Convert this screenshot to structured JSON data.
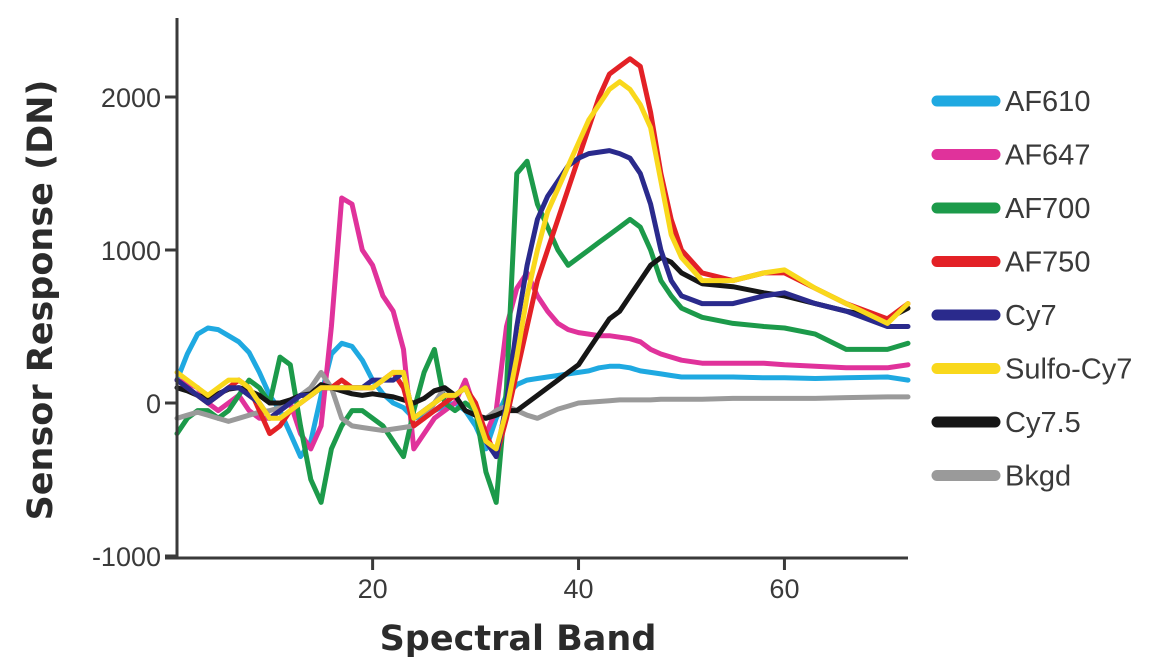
{
  "chart_data": {
    "type": "line",
    "xlabel": "Spectral Band",
    "ylabel": "Sensor Response (DN)",
    "xlim": [
      1,
      72
    ],
    "ylim": [
      -1000,
      2400
    ],
    "xticks": [
      20,
      40,
      60
    ],
    "yticks": [
      -1000,
      0,
      1000,
      2000
    ],
    "ytick_labels": [
      "-1000",
      "0",
      "1000",
      "2000"
    ],
    "xtick_labels": [
      "20",
      "40",
      "60"
    ],
    "legend_position": "right",
    "series": [
      {
        "name": "AF610",
        "color": "#1fa9e1",
        "x": [
          1,
          2,
          3,
          4,
          5,
          6,
          7,
          8,
          9,
          10,
          11,
          12,
          13,
          14,
          15,
          16,
          17,
          18,
          19,
          20,
          21,
          22,
          23,
          24,
          25,
          26,
          27,
          28,
          29,
          30,
          31,
          32,
          33,
          34,
          35,
          36,
          37,
          38,
          39,
          40,
          41,
          42,
          43,
          44,
          45,
          46,
          47,
          48,
          49,
          50,
          52,
          55,
          58,
          60,
          63,
          66,
          70,
          72
        ],
        "y": [
          150,
          320,
          450,
          490,
          480,
          440,
          400,
          330,
          200,
          50,
          -50,
          -200,
          -350,
          -250,
          50,
          320,
          390,
          370,
          280,
          150,
          60,
          0,
          -30,
          -100,
          -80,
          -50,
          -20,
          0,
          -50,
          -150,
          -300,
          -100,
          50,
          120,
          150,
          160,
          170,
          180,
          190,
          200,
          210,
          230,
          240,
          240,
          230,
          210,
          200,
          190,
          180,
          170,
          170,
          170,
          165,
          165,
          160,
          165,
          170,
          150
        ]
      },
      {
        "name": "AF647",
        "color": "#e0329b",
        "x": [
          1,
          2,
          3,
          4,
          5,
          6,
          7,
          8,
          9,
          10,
          11,
          12,
          13,
          14,
          15,
          16,
          17,
          18,
          19,
          20,
          21,
          22,
          23,
          24,
          25,
          26,
          27,
          28,
          29,
          30,
          31,
          32,
          33,
          34,
          35,
          36,
          37,
          38,
          39,
          40,
          41,
          42,
          43,
          44,
          45,
          46,
          47,
          48,
          49,
          50,
          52,
          55,
          58,
          60,
          63,
          66,
          70,
          72
        ],
        "y": [
          150,
          130,
          100,
          0,
          -50,
          0,
          50,
          -50,
          -100,
          -100,
          -50,
          0,
          -200,
          -300,
          -150,
          500,
          1340,
          1300,
          1000,
          900,
          700,
          600,
          350,
          -300,
          -200,
          -100,
          -50,
          0,
          150,
          -50,
          -200,
          -50,
          500,
          750,
          850,
          700,
          600,
          520,
          480,
          460,
          450,
          440,
          440,
          430,
          420,
          400,
          350,
          320,
          300,
          280,
          260,
          260,
          260,
          250,
          240,
          230,
          230,
          250
        ]
      },
      {
        "name": "AF700",
        "color": "#1c9a4a",
        "x": [
          1,
          2,
          3,
          4,
          5,
          6,
          7,
          8,
          9,
          10,
          11,
          12,
          13,
          14,
          15,
          16,
          17,
          18,
          19,
          20,
          21,
          22,
          23,
          24,
          25,
          26,
          27,
          28,
          29,
          30,
          31,
          32,
          33,
          34,
          35,
          36,
          37,
          38,
          39,
          40,
          41,
          42,
          43,
          44,
          45,
          46,
          47,
          48,
          49,
          50,
          52,
          55,
          58,
          60,
          63,
          66,
          70,
          72
        ],
        "y": [
          -200,
          -100,
          -50,
          -50,
          -100,
          -50,
          50,
          150,
          100,
          0,
          300,
          250,
          -150,
          -500,
          -650,
          -300,
          -150,
          -50,
          -50,
          -100,
          -150,
          -250,
          -350,
          -50,
          200,
          350,
          0,
          -50,
          0,
          -50,
          -450,
          -650,
          100,
          1500,
          1580,
          1300,
          1150,
          1000,
          900,
          950,
          1000,
          1050,
          1100,
          1150,
          1200,
          1150,
          1000,
          800,
          700,
          620,
          560,
          520,
          500,
          490,
          450,
          350,
          350,
          390
        ]
      },
      {
        "name": "AF750",
        "color": "#e32126",
        "x": [
          1,
          2,
          3,
          4,
          5,
          6,
          7,
          8,
          9,
          10,
          11,
          12,
          13,
          14,
          15,
          16,
          17,
          18,
          19,
          20,
          21,
          22,
          23,
          24,
          25,
          26,
          27,
          28,
          29,
          30,
          31,
          32,
          33,
          34,
          35,
          36,
          37,
          38,
          39,
          40,
          41,
          42,
          43,
          44,
          45,
          46,
          47,
          48,
          49,
          50,
          52,
          55,
          58,
          60,
          63,
          66,
          70,
          72
        ],
        "y": [
          150,
          100,
          50,
          0,
          50,
          100,
          150,
          100,
          -50,
          -200,
          -150,
          -50,
          0,
          50,
          100,
          100,
          150,
          100,
          100,
          100,
          150,
          200,
          100,
          -150,
          -100,
          -50,
          0,
          50,
          100,
          0,
          -200,
          -350,
          -100,
          200,
          500,
          800,
          1000,
          1200,
          1400,
          1600,
          1800,
          2000,
          2150,
          2200,
          2250,
          2200,
          1900,
          1500,
          1200,
          1000,
          850,
          800,
          850,
          850,
          750,
          650,
          550,
          650
        ]
      },
      {
        "name": "Cy7",
        "color": "#2a2a8c",
        "x": [
          1,
          2,
          3,
          4,
          5,
          6,
          7,
          8,
          9,
          10,
          11,
          12,
          13,
          14,
          15,
          16,
          17,
          18,
          19,
          20,
          21,
          22,
          23,
          24,
          25,
          26,
          27,
          28,
          29,
          30,
          31,
          32,
          33,
          34,
          35,
          36,
          37,
          38,
          39,
          40,
          41,
          42,
          43,
          44,
          45,
          46,
          47,
          48,
          49,
          50,
          52,
          55,
          58,
          60,
          63,
          66,
          70,
          72
        ],
        "y": [
          150,
          100,
          50,
          0,
          50,
          100,
          100,
          50,
          0,
          -100,
          -50,
          0,
          50,
          50,
          100,
          100,
          100,
          100,
          100,
          150,
          150,
          150,
          200,
          -100,
          -50,
          0,
          50,
          50,
          100,
          -50,
          -250,
          -350,
          0,
          500,
          900,
          1200,
          1350,
          1450,
          1550,
          1600,
          1630,
          1640,
          1650,
          1630,
          1600,
          1500,
          1300,
          1000,
          800,
          700,
          650,
          650,
          700,
          720,
          650,
          600,
          500,
          500
        ]
      },
      {
        "name": "Sulfo-Cy7",
        "color": "#f9d81c",
        "x": [
          1,
          2,
          3,
          4,
          5,
          6,
          7,
          8,
          9,
          10,
          11,
          12,
          13,
          14,
          15,
          16,
          17,
          18,
          19,
          20,
          21,
          22,
          23,
          24,
          25,
          26,
          27,
          28,
          29,
          30,
          31,
          32,
          33,
          34,
          35,
          36,
          37,
          38,
          39,
          40,
          41,
          42,
          43,
          44,
          45,
          46,
          47,
          48,
          49,
          50,
          52,
          55,
          58,
          60,
          63,
          66,
          70,
          72
        ],
        "y": [
          200,
          150,
          100,
          50,
          100,
          150,
          150,
          100,
          0,
          -100,
          -100,
          -50,
          0,
          50,
          100,
          100,
          100,
          100,
          100,
          100,
          150,
          200,
          200,
          -100,
          -50,
          0,
          50,
          50,
          100,
          -50,
          -250,
          -300,
          -50,
          300,
          700,
          1000,
          1250,
          1400,
          1550,
          1700,
          1850,
          1950,
          2050,
          2100,
          2050,
          1950,
          1800,
          1450,
          1100,
          950,
          800,
          800,
          850,
          870,
          750,
          650,
          520,
          650
        ]
      },
      {
        "name": "Cy7.5",
        "color": "#161616",
        "x": [
          1,
          2,
          3,
          4,
          5,
          6,
          7,
          8,
          9,
          10,
          11,
          12,
          13,
          14,
          15,
          16,
          17,
          18,
          19,
          20,
          21,
          22,
          23,
          24,
          25,
          26,
          27,
          28,
          29,
          30,
          31,
          32,
          33,
          34,
          35,
          36,
          37,
          38,
          39,
          40,
          41,
          42,
          43,
          44,
          45,
          46,
          47,
          48,
          49,
          50,
          52,
          55,
          58,
          60,
          63,
          66,
          70,
          72
        ],
        "y": [
          100,
          80,
          50,
          30,
          60,
          90,
          100,
          80,
          50,
          0,
          0,
          20,
          50,
          60,
          120,
          100,
          80,
          60,
          50,
          60,
          50,
          40,
          20,
          0,
          30,
          80,
          100,
          50,
          -50,
          -80,
          -100,
          -80,
          -50,
          -50,
          0,
          50,
          100,
          150,
          200,
          250,
          350,
          450,
          550,
          600,
          700,
          800,
          900,
          950,
          920,
          850,
          780,
          760,
          720,
          700,
          650,
          600,
          550,
          620
        ]
      },
      {
        "name": "Bkgd",
        "color": "#9a9a9a",
        "x": [
          1,
          2,
          3,
          4,
          5,
          6,
          7,
          8,
          9,
          10,
          11,
          12,
          13,
          14,
          15,
          16,
          17,
          18,
          19,
          20,
          21,
          22,
          23,
          24,
          25,
          26,
          27,
          28,
          29,
          30,
          31,
          32,
          33,
          34,
          35,
          36,
          37,
          38,
          39,
          40,
          41,
          42,
          43,
          44,
          45,
          46,
          47,
          48,
          49,
          50,
          52,
          55,
          58,
          60,
          63,
          66,
          70,
          72
        ],
        "y": [
          -100,
          -80,
          -60,
          -80,
          -100,
          -120,
          -100,
          -80,
          -60,
          -50,
          -30,
          0,
          50,
          100,
          200,
          100,
          -100,
          -150,
          -160,
          -170,
          -180,
          -170,
          -160,
          -150,
          -100,
          0,
          100,
          50,
          -50,
          -80,
          -100,
          -50,
          -20,
          -50,
          -80,
          -100,
          -70,
          -40,
          -20,
          0,
          5,
          10,
          15,
          20,
          20,
          20,
          20,
          25,
          25,
          25,
          25,
          30,
          30,
          30,
          30,
          35,
          40,
          40
        ]
      }
    ]
  }
}
